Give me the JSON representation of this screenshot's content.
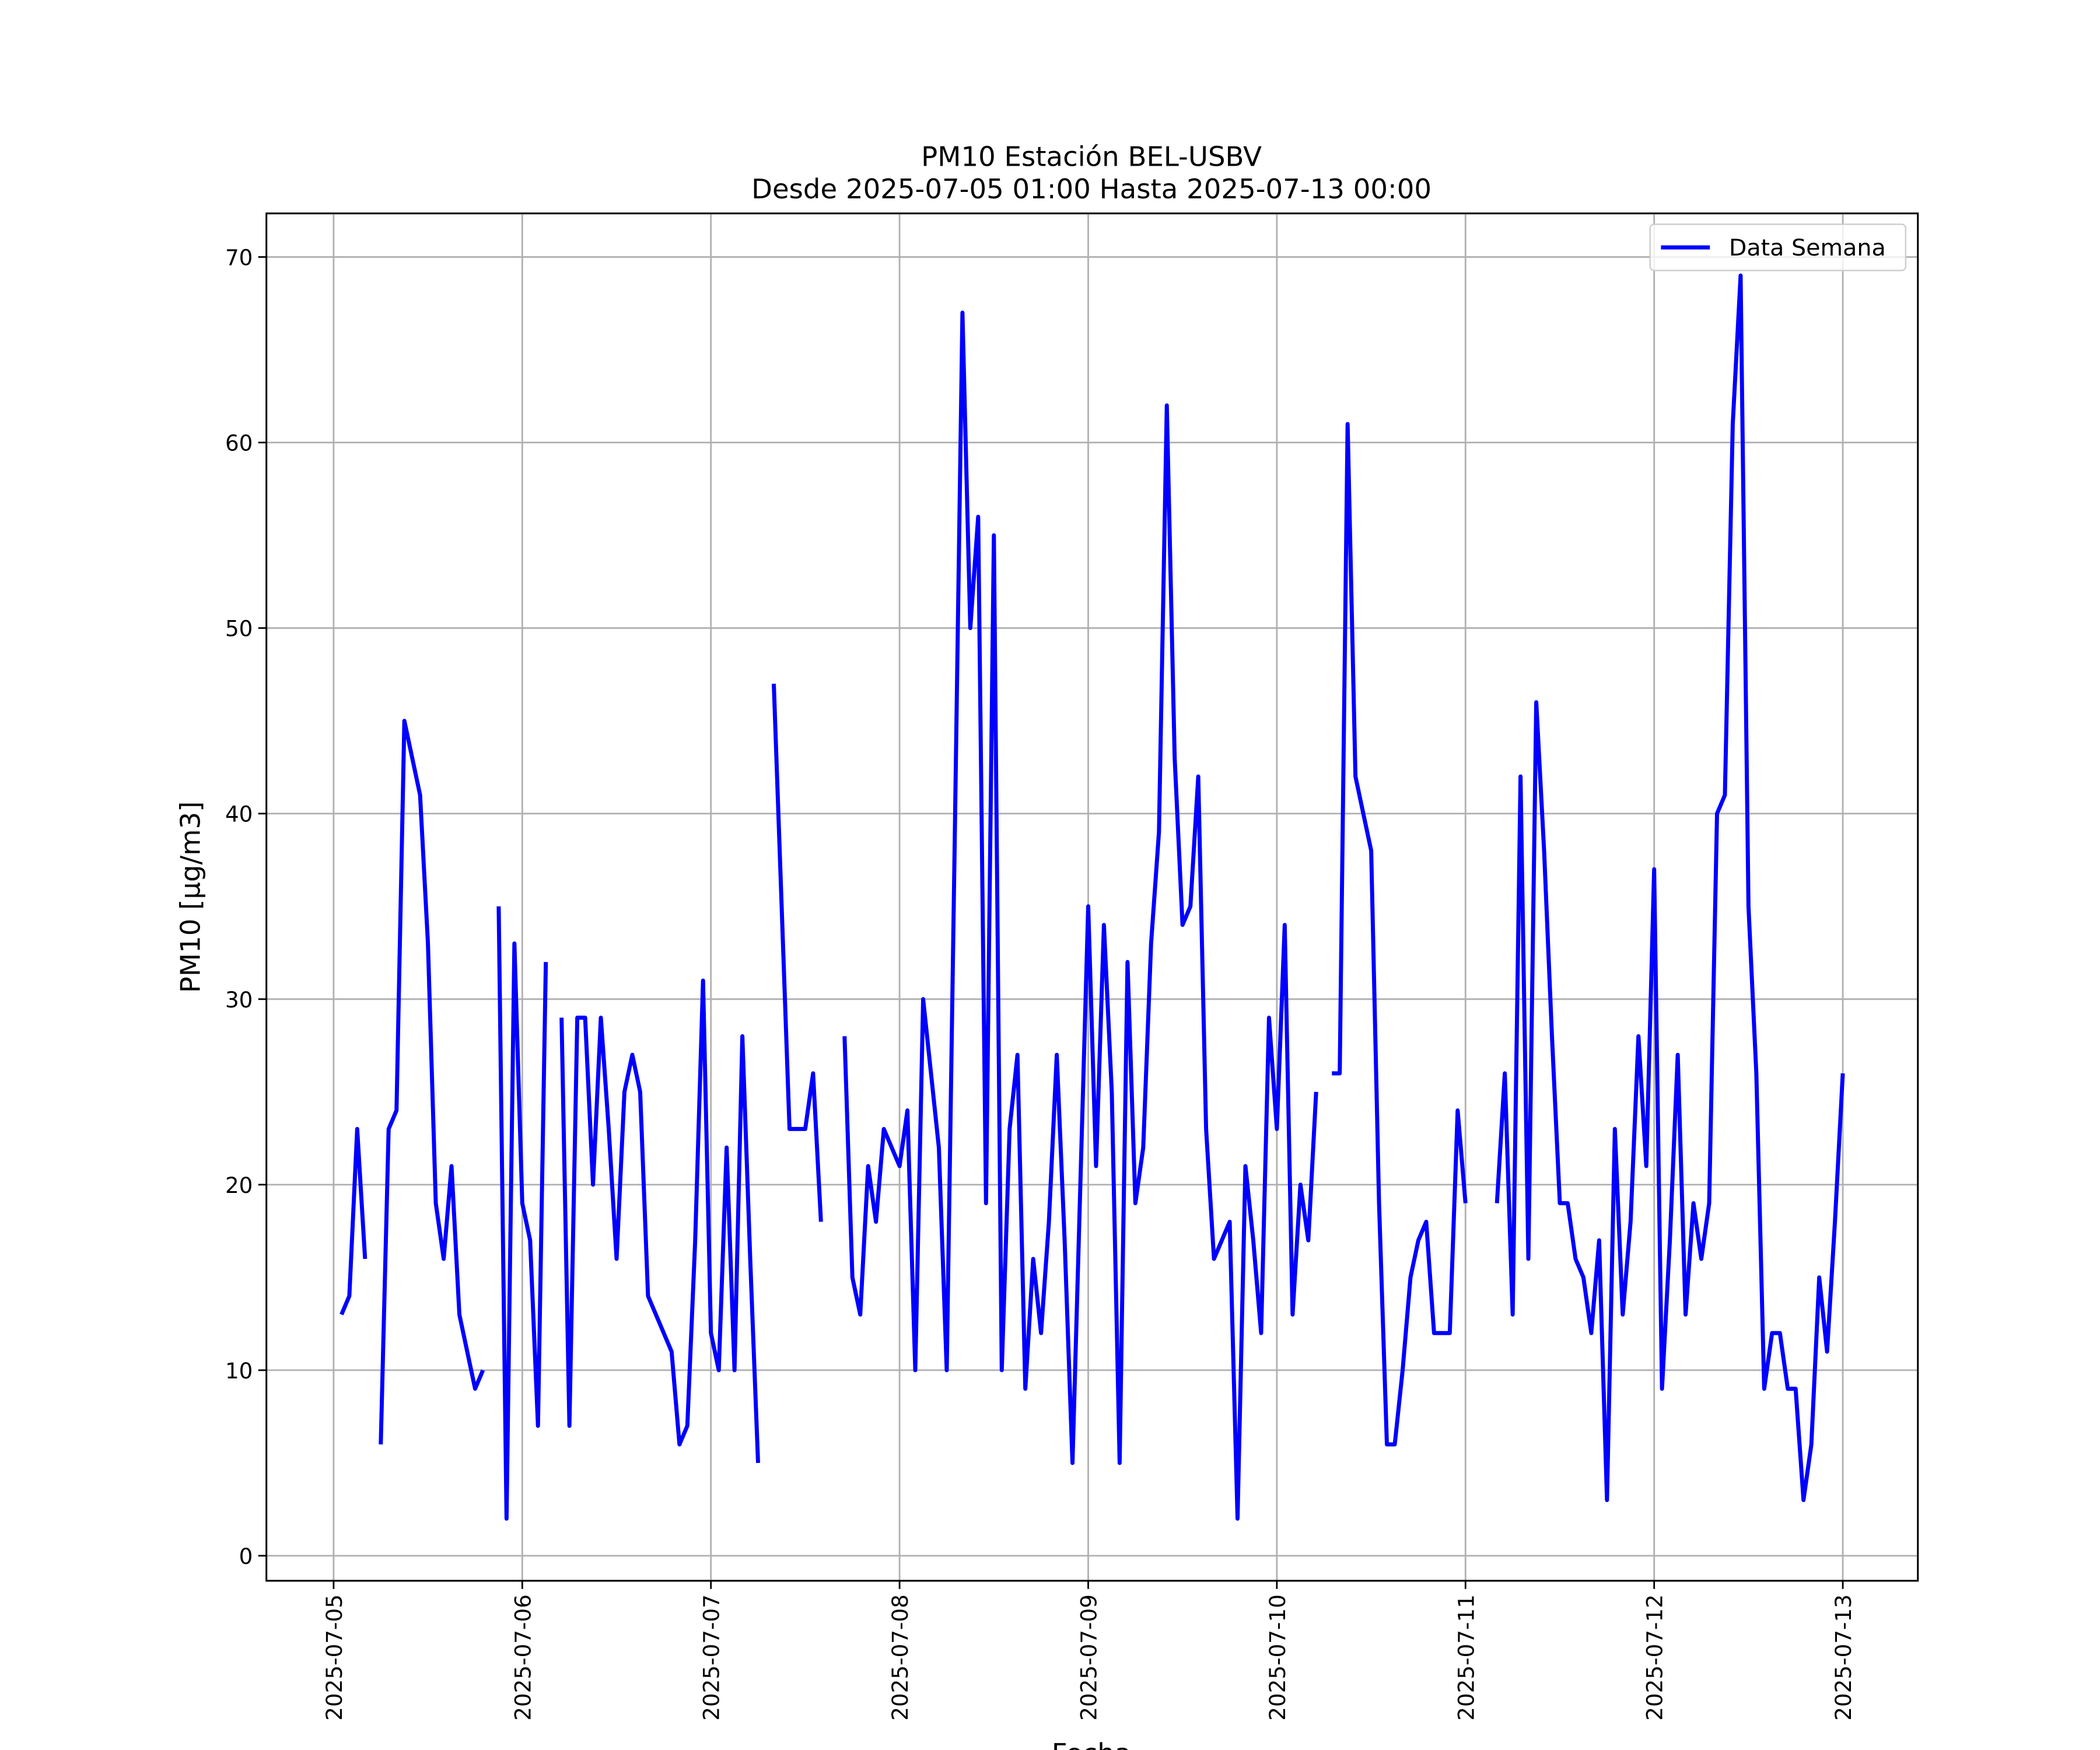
{
  "chart_data": {
    "type": "line",
    "title": "PM10 Estación BEL-USBV",
    "subtitle": "Desde 2025-07-05 01:00 Hasta 2025-07-13 00:00",
    "x_label": "Fecha",
    "y_label": "PM10 [μg/m3]",
    "x": [
      "2025-07-05 01:00",
      "2025-07-05 02:00",
      "2025-07-05 03:00",
      "2025-07-05 04:00",
      "2025-07-05 05:00",
      "2025-07-05 06:00",
      "2025-07-05 07:00",
      "2025-07-05 08:00",
      "2025-07-05 09:00",
      "2025-07-05 10:00",
      "2025-07-05 11:00",
      "2025-07-05 12:00",
      "2025-07-05 13:00",
      "2025-07-05 14:00",
      "2025-07-05 15:00",
      "2025-07-05 16:00",
      "2025-07-05 17:00",
      "2025-07-05 18:00",
      "2025-07-05 19:00",
      "2025-07-05 20:00",
      "2025-07-05 21:00",
      "2025-07-05 22:00",
      "2025-07-05 23:00",
      "2025-07-06 00:00",
      "2025-07-06 01:00",
      "2025-07-06 02:00",
      "2025-07-06 03:00",
      "2025-07-06 04:00",
      "2025-07-06 05:00",
      "2025-07-06 06:00",
      "2025-07-06 07:00",
      "2025-07-06 08:00",
      "2025-07-06 09:00",
      "2025-07-06 10:00",
      "2025-07-06 11:00",
      "2025-07-06 12:00",
      "2025-07-06 13:00",
      "2025-07-06 14:00",
      "2025-07-06 15:00",
      "2025-07-06 16:00",
      "2025-07-06 17:00",
      "2025-07-06 18:00",
      "2025-07-06 19:00",
      "2025-07-06 20:00",
      "2025-07-06 21:00",
      "2025-07-06 22:00",
      "2025-07-06 23:00",
      "2025-07-07 00:00",
      "2025-07-07 01:00",
      "2025-07-07 02:00",
      "2025-07-07 03:00",
      "2025-07-07 04:00",
      "2025-07-07 05:00",
      "2025-07-07 06:00",
      "2025-07-07 07:00",
      "2025-07-07 08:00",
      "2025-07-07 09:00",
      "2025-07-07 10:00",
      "2025-07-07 11:00",
      "2025-07-07 12:00",
      "2025-07-07 13:00",
      "2025-07-07 14:00",
      "2025-07-07 15:00",
      "2025-07-07 16:00",
      "2025-07-07 17:00",
      "2025-07-07 18:00",
      "2025-07-07 19:00",
      "2025-07-07 20:00",
      "2025-07-07 21:00",
      "2025-07-07 22:00",
      "2025-07-07 23:00",
      "2025-07-08 00:00",
      "2025-07-08 01:00",
      "2025-07-08 02:00",
      "2025-07-08 03:00",
      "2025-07-08 04:00",
      "2025-07-08 05:00",
      "2025-07-08 06:00",
      "2025-07-08 07:00",
      "2025-07-08 08:00",
      "2025-07-08 09:00",
      "2025-07-08 10:00",
      "2025-07-08 11:00",
      "2025-07-08 12:00",
      "2025-07-08 13:00",
      "2025-07-08 14:00",
      "2025-07-08 15:00",
      "2025-07-08 16:00",
      "2025-07-08 17:00",
      "2025-07-08 18:00",
      "2025-07-08 19:00",
      "2025-07-08 20:00",
      "2025-07-08 21:00",
      "2025-07-08 22:00",
      "2025-07-08 23:00",
      "2025-07-09 00:00",
      "2025-07-09 01:00",
      "2025-07-09 02:00",
      "2025-07-09 03:00",
      "2025-07-09 04:00",
      "2025-07-09 05:00",
      "2025-07-09 06:00",
      "2025-07-09 07:00",
      "2025-07-09 08:00",
      "2025-07-09 09:00",
      "2025-07-09 10:00",
      "2025-07-09 11:00",
      "2025-07-09 12:00",
      "2025-07-09 13:00",
      "2025-07-09 14:00",
      "2025-07-09 15:00",
      "2025-07-09 16:00",
      "2025-07-09 17:00",
      "2025-07-09 18:00",
      "2025-07-09 19:00",
      "2025-07-09 20:00",
      "2025-07-09 21:00",
      "2025-07-09 22:00",
      "2025-07-09 23:00",
      "2025-07-10 00:00",
      "2025-07-10 01:00",
      "2025-07-10 02:00",
      "2025-07-10 03:00",
      "2025-07-10 04:00",
      "2025-07-10 05:00",
      "2025-07-10 06:00",
      "2025-07-10 07:00",
      "2025-07-10 08:00",
      "2025-07-10 09:00",
      "2025-07-10 10:00",
      "2025-07-10 11:00",
      "2025-07-10 12:00",
      "2025-07-10 13:00",
      "2025-07-10 14:00",
      "2025-07-10 15:00",
      "2025-07-10 16:00",
      "2025-07-10 17:00",
      "2025-07-10 18:00",
      "2025-07-10 19:00",
      "2025-07-10 20:00",
      "2025-07-10 21:00",
      "2025-07-10 22:00",
      "2025-07-10 23:00",
      "2025-07-11 00:00",
      "2025-07-11 01:00",
      "2025-07-11 02:00",
      "2025-07-11 03:00",
      "2025-07-11 04:00",
      "2025-07-11 05:00",
      "2025-07-11 06:00",
      "2025-07-11 07:00",
      "2025-07-11 08:00",
      "2025-07-11 09:00",
      "2025-07-11 10:00",
      "2025-07-11 11:00",
      "2025-07-11 12:00",
      "2025-07-11 13:00",
      "2025-07-11 14:00",
      "2025-07-11 15:00",
      "2025-07-11 16:00",
      "2025-07-11 17:00",
      "2025-07-11 18:00",
      "2025-07-11 19:00",
      "2025-07-11 20:00",
      "2025-07-11 21:00",
      "2025-07-11 22:00",
      "2025-07-11 23:00",
      "2025-07-12 00:00",
      "2025-07-12 01:00",
      "2025-07-12 02:00",
      "2025-07-12 03:00",
      "2025-07-12 04:00",
      "2025-07-12 05:00",
      "2025-07-12 06:00",
      "2025-07-12 07:00",
      "2025-07-12 08:00",
      "2025-07-12 09:00",
      "2025-07-12 10:00",
      "2025-07-12 11:00",
      "2025-07-12 12:00",
      "2025-07-12 13:00",
      "2025-07-12 14:00",
      "2025-07-12 15:00",
      "2025-07-12 16:00",
      "2025-07-12 17:00",
      "2025-07-12 18:00",
      "2025-07-12 19:00",
      "2025-07-12 20:00",
      "2025-07-12 21:00",
      "2025-07-12 22:00",
      "2025-07-12 23:00",
      "2025-07-13 00:00"
    ],
    "series": [
      {
        "name": "Data Semana",
        "color": "#0000ff",
        "values": [
          13,
          14,
          23,
          16,
          null,
          6,
          23,
          24,
          45,
          43,
          41,
          33,
          19,
          16,
          21,
          13,
          11,
          9,
          10,
          null,
          35,
          2,
          33,
          19,
          17,
          7,
          32,
          null,
          29,
          7,
          29,
          29,
          20,
          29,
          23,
          16,
          25,
          27,
          25,
          14,
          13,
          12,
          11,
          6,
          7,
          17,
          31,
          12,
          10,
          22,
          10,
          28,
          16,
          5,
          null,
          47,
          35,
          23,
          23,
          23,
          26,
          18,
          null,
          null,
          28,
          15,
          13,
          21,
          18,
          23,
          22,
          21,
          24,
          10,
          30,
          26,
          22,
          10,
          38,
          67,
          50,
          56,
          19,
          55,
          10,
          23,
          27,
          9,
          16,
          12,
          18,
          27,
          17,
          5,
          20,
          35,
          21,
          34,
          25,
          5,
          32,
          19,
          22,
          33,
          39,
          62,
          43,
          34,
          35,
          42,
          23,
          16,
          17,
          18,
          2,
          21,
          17,
          12,
          29,
          23,
          34,
          13,
          20,
          17,
          25,
          null,
          26,
          26,
          61,
          42,
          40,
          38,
          19,
          6,
          6,
          10,
          15,
          17,
          18,
          12,
          12,
          12,
          24,
          19,
          null,
          null,
          null,
          19,
          26,
          13,
          42,
          16,
          46,
          38,
          28,
          19,
          19,
          16,
          15,
          12,
          17,
          3,
          23,
          13,
          18,
          28,
          21,
          37,
          9,
          17,
          27,
          13,
          19,
          16,
          19,
          40,
          41,
          61,
          69,
          35,
          26,
          9,
          12,
          12,
          9,
          9,
          3,
          6,
          15,
          11,
          18,
          26
        ]
      }
    ],
    "xlim": [
      "2025-07-04 15:27",
      "2025-07-13 09:33"
    ],
    "xticks": [
      "2025-07-05",
      "2025-07-06",
      "2025-07-07",
      "2025-07-08",
      "2025-07-09",
      "2025-07-10",
      "2025-07-11",
      "2025-07-12",
      "2025-07-13"
    ],
    "ylim": [
      -1.35,
      72.35
    ],
    "yticks": [
      0,
      10,
      20,
      30,
      40,
      50,
      60,
      70
    ],
    "grid": true,
    "legend": "upper right"
  }
}
